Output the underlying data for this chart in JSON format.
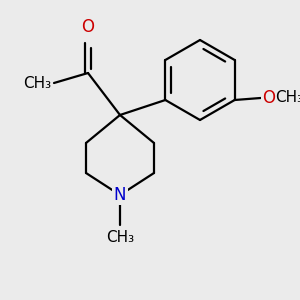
{
  "bg_color": "#ebebeb",
  "bond_color": "#000000",
  "o_color": "#cc0000",
  "n_color": "#0000cc",
  "line_width": 1.6,
  "font_size": 12,
  "small_font_size": 11,
  "fig_w": 3.0,
  "fig_h": 3.0,
  "dpi": 100,
  "xlim": [
    0,
    300
  ],
  "ylim": [
    0,
    300
  ]
}
